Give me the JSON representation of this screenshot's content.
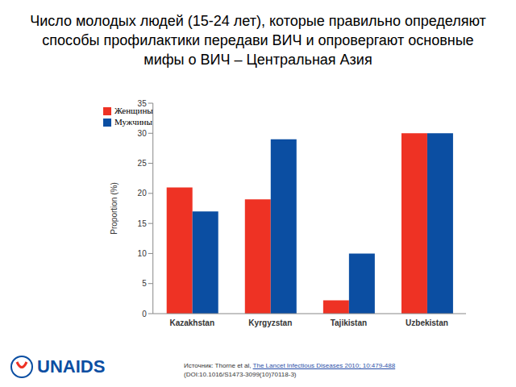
{
  "chart_data": {
    "type": "bar",
    "title": "Число молодых людей (15-24 лет), которые правильно определяют способы профилактики передави ВИЧ и опровергают основные мифы о ВИЧ – Центральная Азия",
    "y_label": "Proportion (%)",
    "categories": [
      "Kazakhstan",
      "Kyrgyzstan",
      "Tajikistan",
      "Uzbekistan"
    ],
    "series": [
      {
        "name": "Женщины",
        "color": "#ee3224",
        "values": [
          21,
          19,
          2.2,
          30
        ]
      },
      {
        "name": "Мужчины",
        "color": "#0b4ea2",
        "values": [
          17,
          29,
          10,
          30
        ]
      }
    ],
    "ylim": [
      0,
      35
    ],
    "yticks": [
      0,
      5,
      10,
      15,
      20,
      25,
      30,
      35
    ],
    "grid": false,
    "legend": "upper left",
    "source": {
      "prefix": "Источник:  Thorne et al,",
      "link": "The Lancet Infectious Diseases 2010; 10:479-488",
      "doi": "(DOI:10.1016/S1473-3099(10)70118-3)"
    },
    "logo": "UNAIDS"
  }
}
